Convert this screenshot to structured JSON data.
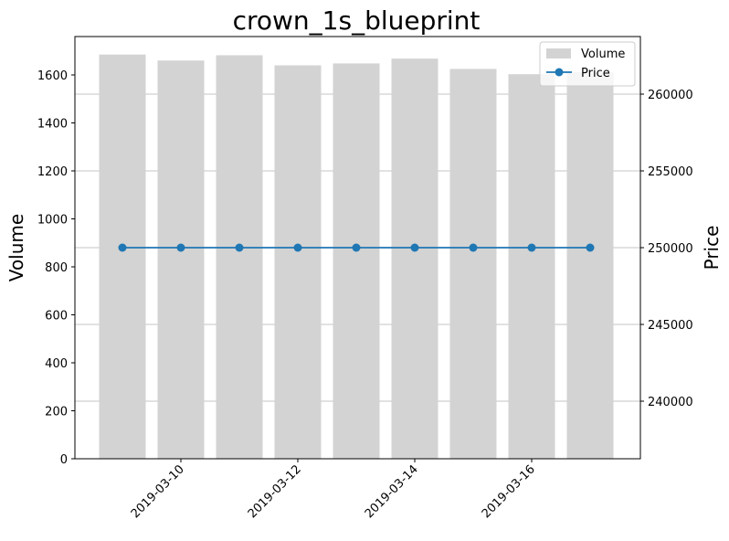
{
  "chart_data": {
    "type": "bar+line",
    "title": "crown_1s_blueprint",
    "xlabel": "",
    "ylabel_left": "Volume",
    "ylabel_right": "Price",
    "dates": [
      "2019-03-09",
      "2019-03-10",
      "2019-03-11",
      "2019-03-12",
      "2019-03-13",
      "2019-03-14",
      "2019-03-15",
      "2019-03-16",
      "2019-03-17"
    ],
    "x_tick_labels": [
      "2019-03-10",
      "2019-03-12",
      "2019-03-14",
      "2019-03-16"
    ],
    "volume": [
      1685,
      1660,
      1682,
      1640,
      1648,
      1668,
      1625,
      1603,
      1612
    ],
    "price": [
      250000,
      250000,
      250000,
      250000,
      250000,
      250000,
      250000,
      250000,
      250000
    ],
    "ylim_left": [
      0,
      1760
    ],
    "ylim_right": [
      236250,
      263750
    ],
    "yticks_left": [
      0,
      200,
      400,
      600,
      800,
      1000,
      1200,
      1400,
      1600
    ],
    "yticks_right": [
      240000,
      245000,
      250000,
      255000,
      260000
    ],
    "grid": "right-axis horizontal",
    "legend": {
      "position": "top-right",
      "entries": [
        "Volume",
        "Price"
      ]
    },
    "colors": {
      "volume": "#d3d3d3",
      "price": "#1f77b4",
      "grid": "#b0b0b0"
    }
  }
}
